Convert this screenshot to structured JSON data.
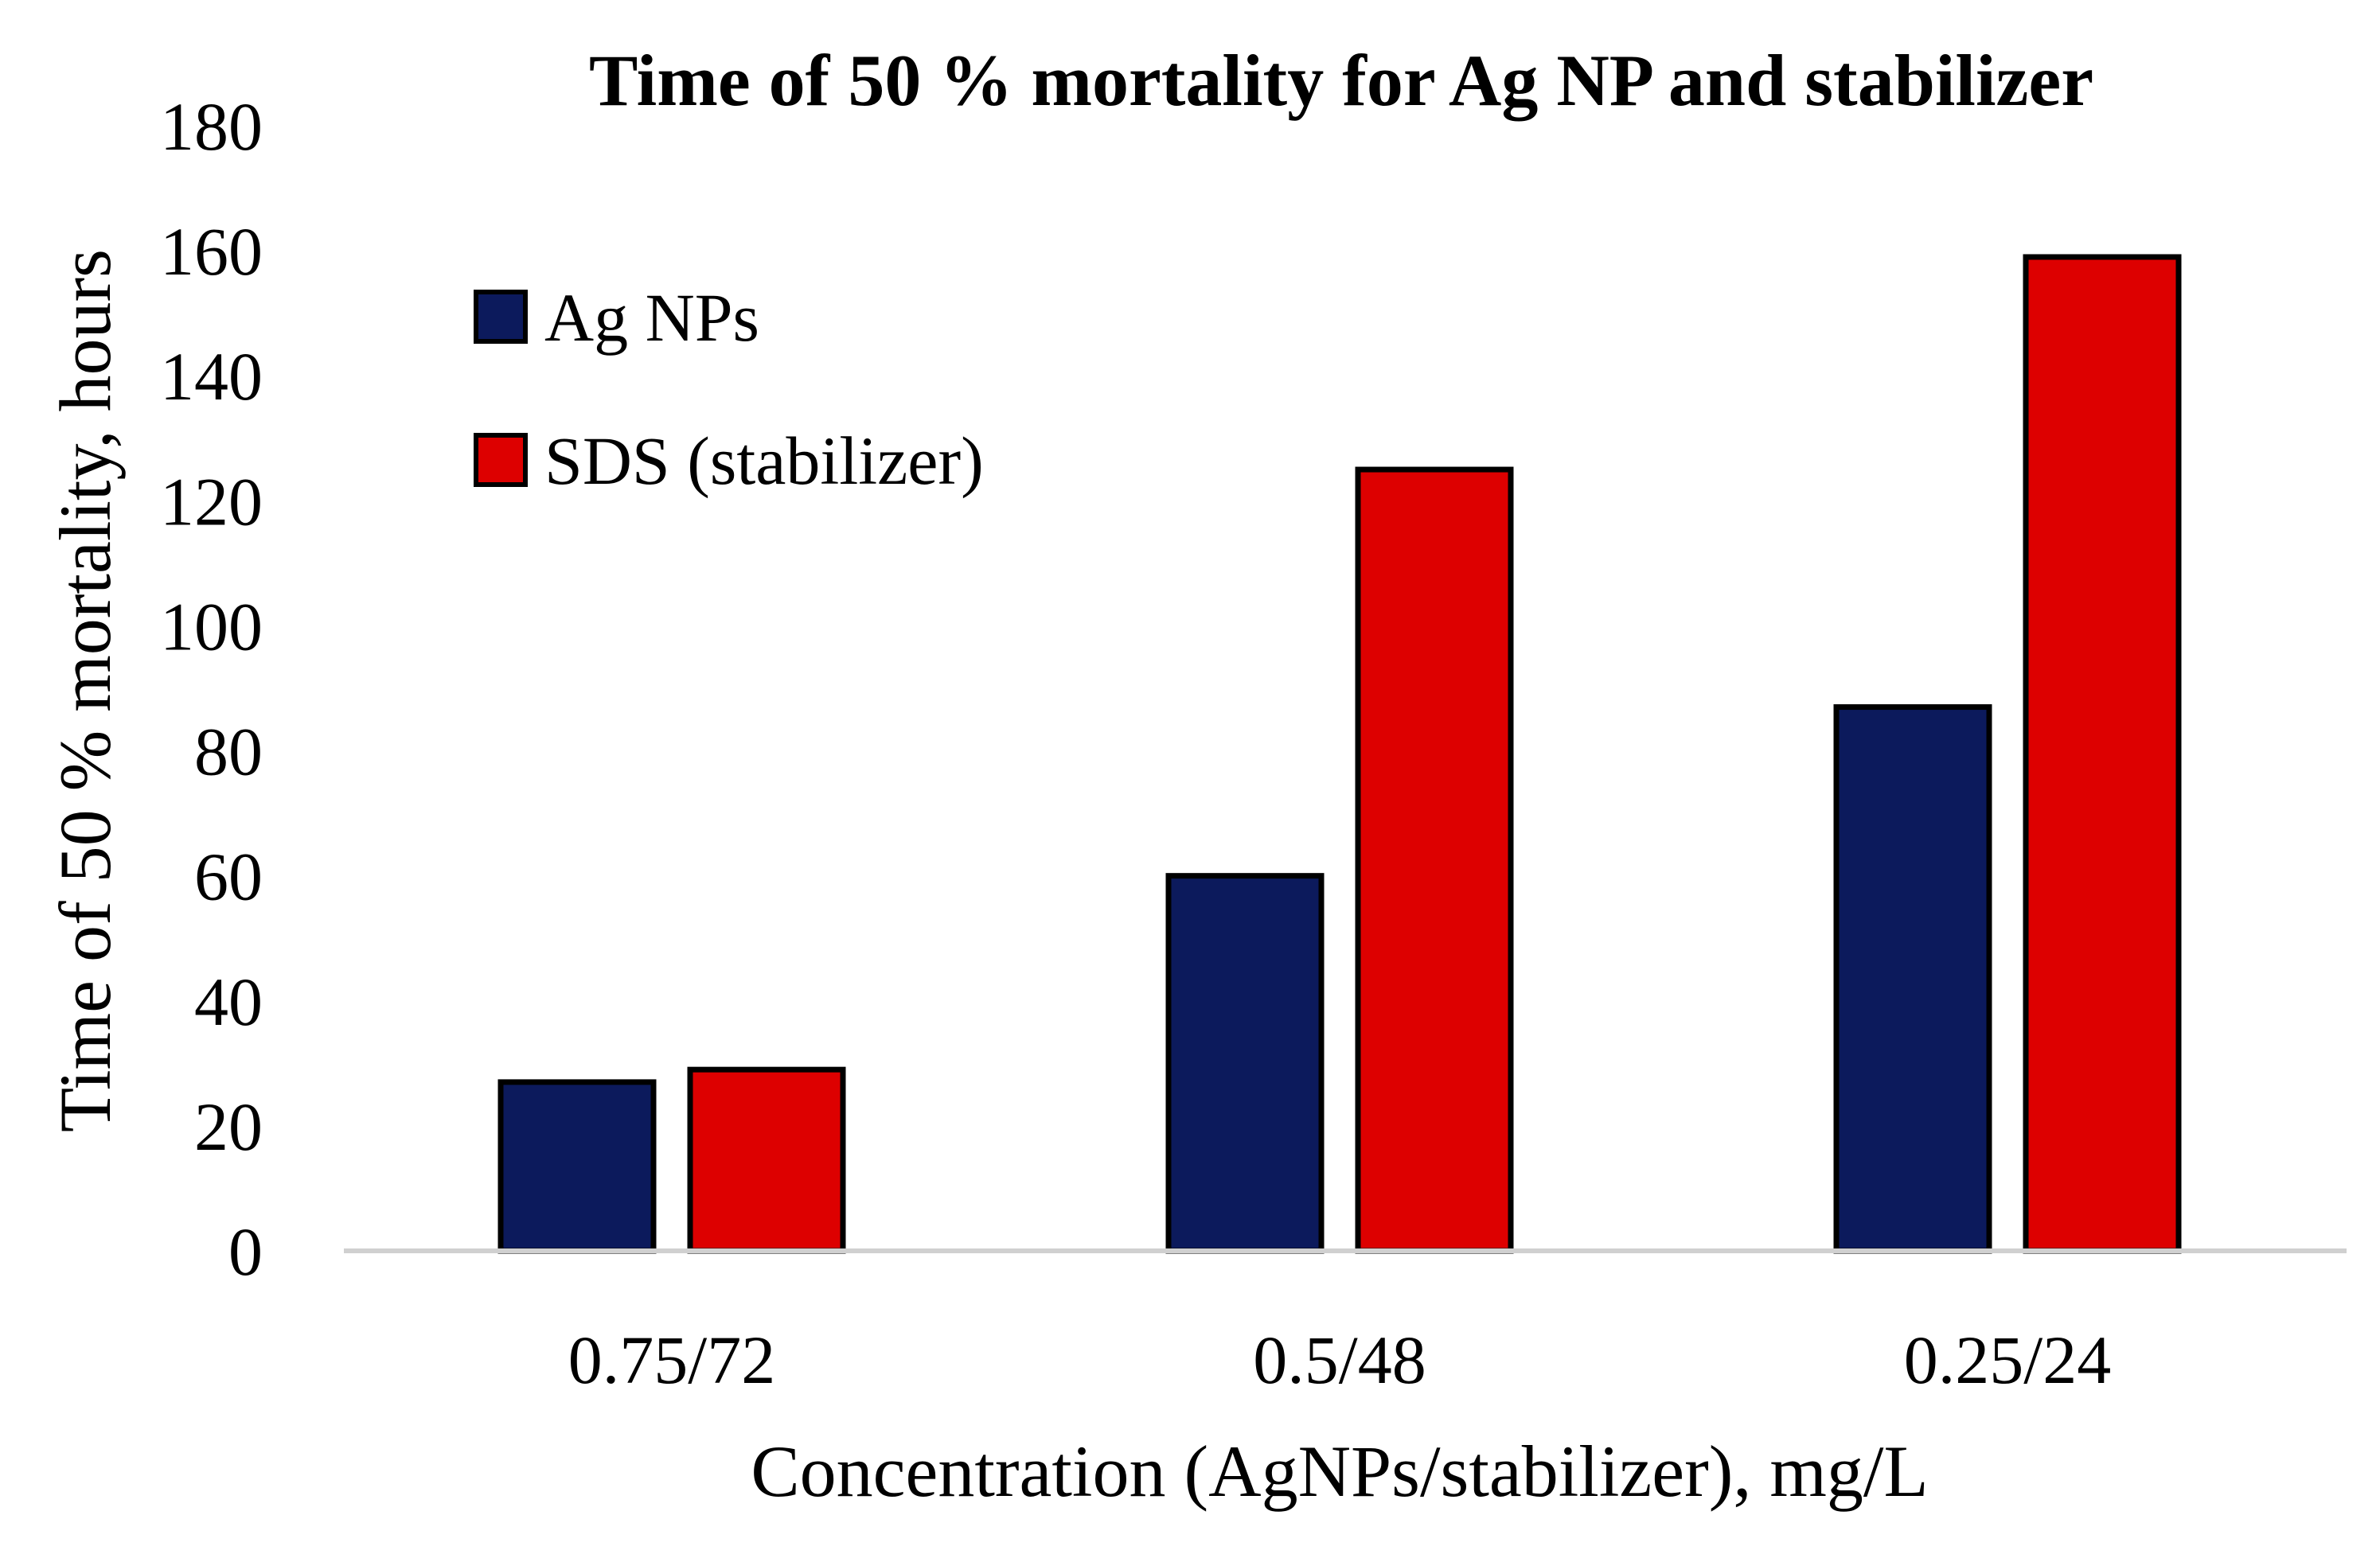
{
  "chart_data": {
    "type": "bar",
    "title": "Time of 50 % mortality for Ag NP and stabilizer",
    "xlabel": "Concentration (AgNPs/stabilizer), mg/L",
    "ylabel": "Time of 50 % mortality, hours",
    "categories": [
      "0.75/72",
      "0.5/48",
      "0.25/24"
    ],
    "series": [
      {
        "name": "Ag NPs",
        "color": "#0c1a5c",
        "values": [
          27,
          60,
          87
        ]
      },
      {
        "name": "SDS (stabilizer)",
        "color": "#dd0000",
        "values": [
          29,
          125,
          159
        ]
      }
    ],
    "ylim": [
      0,
      180
    ],
    "yticks": [
      0,
      20,
      40,
      60,
      80,
      100,
      120,
      140,
      160,
      180
    ],
    "grid": false,
    "legend_position": "top-left"
  }
}
